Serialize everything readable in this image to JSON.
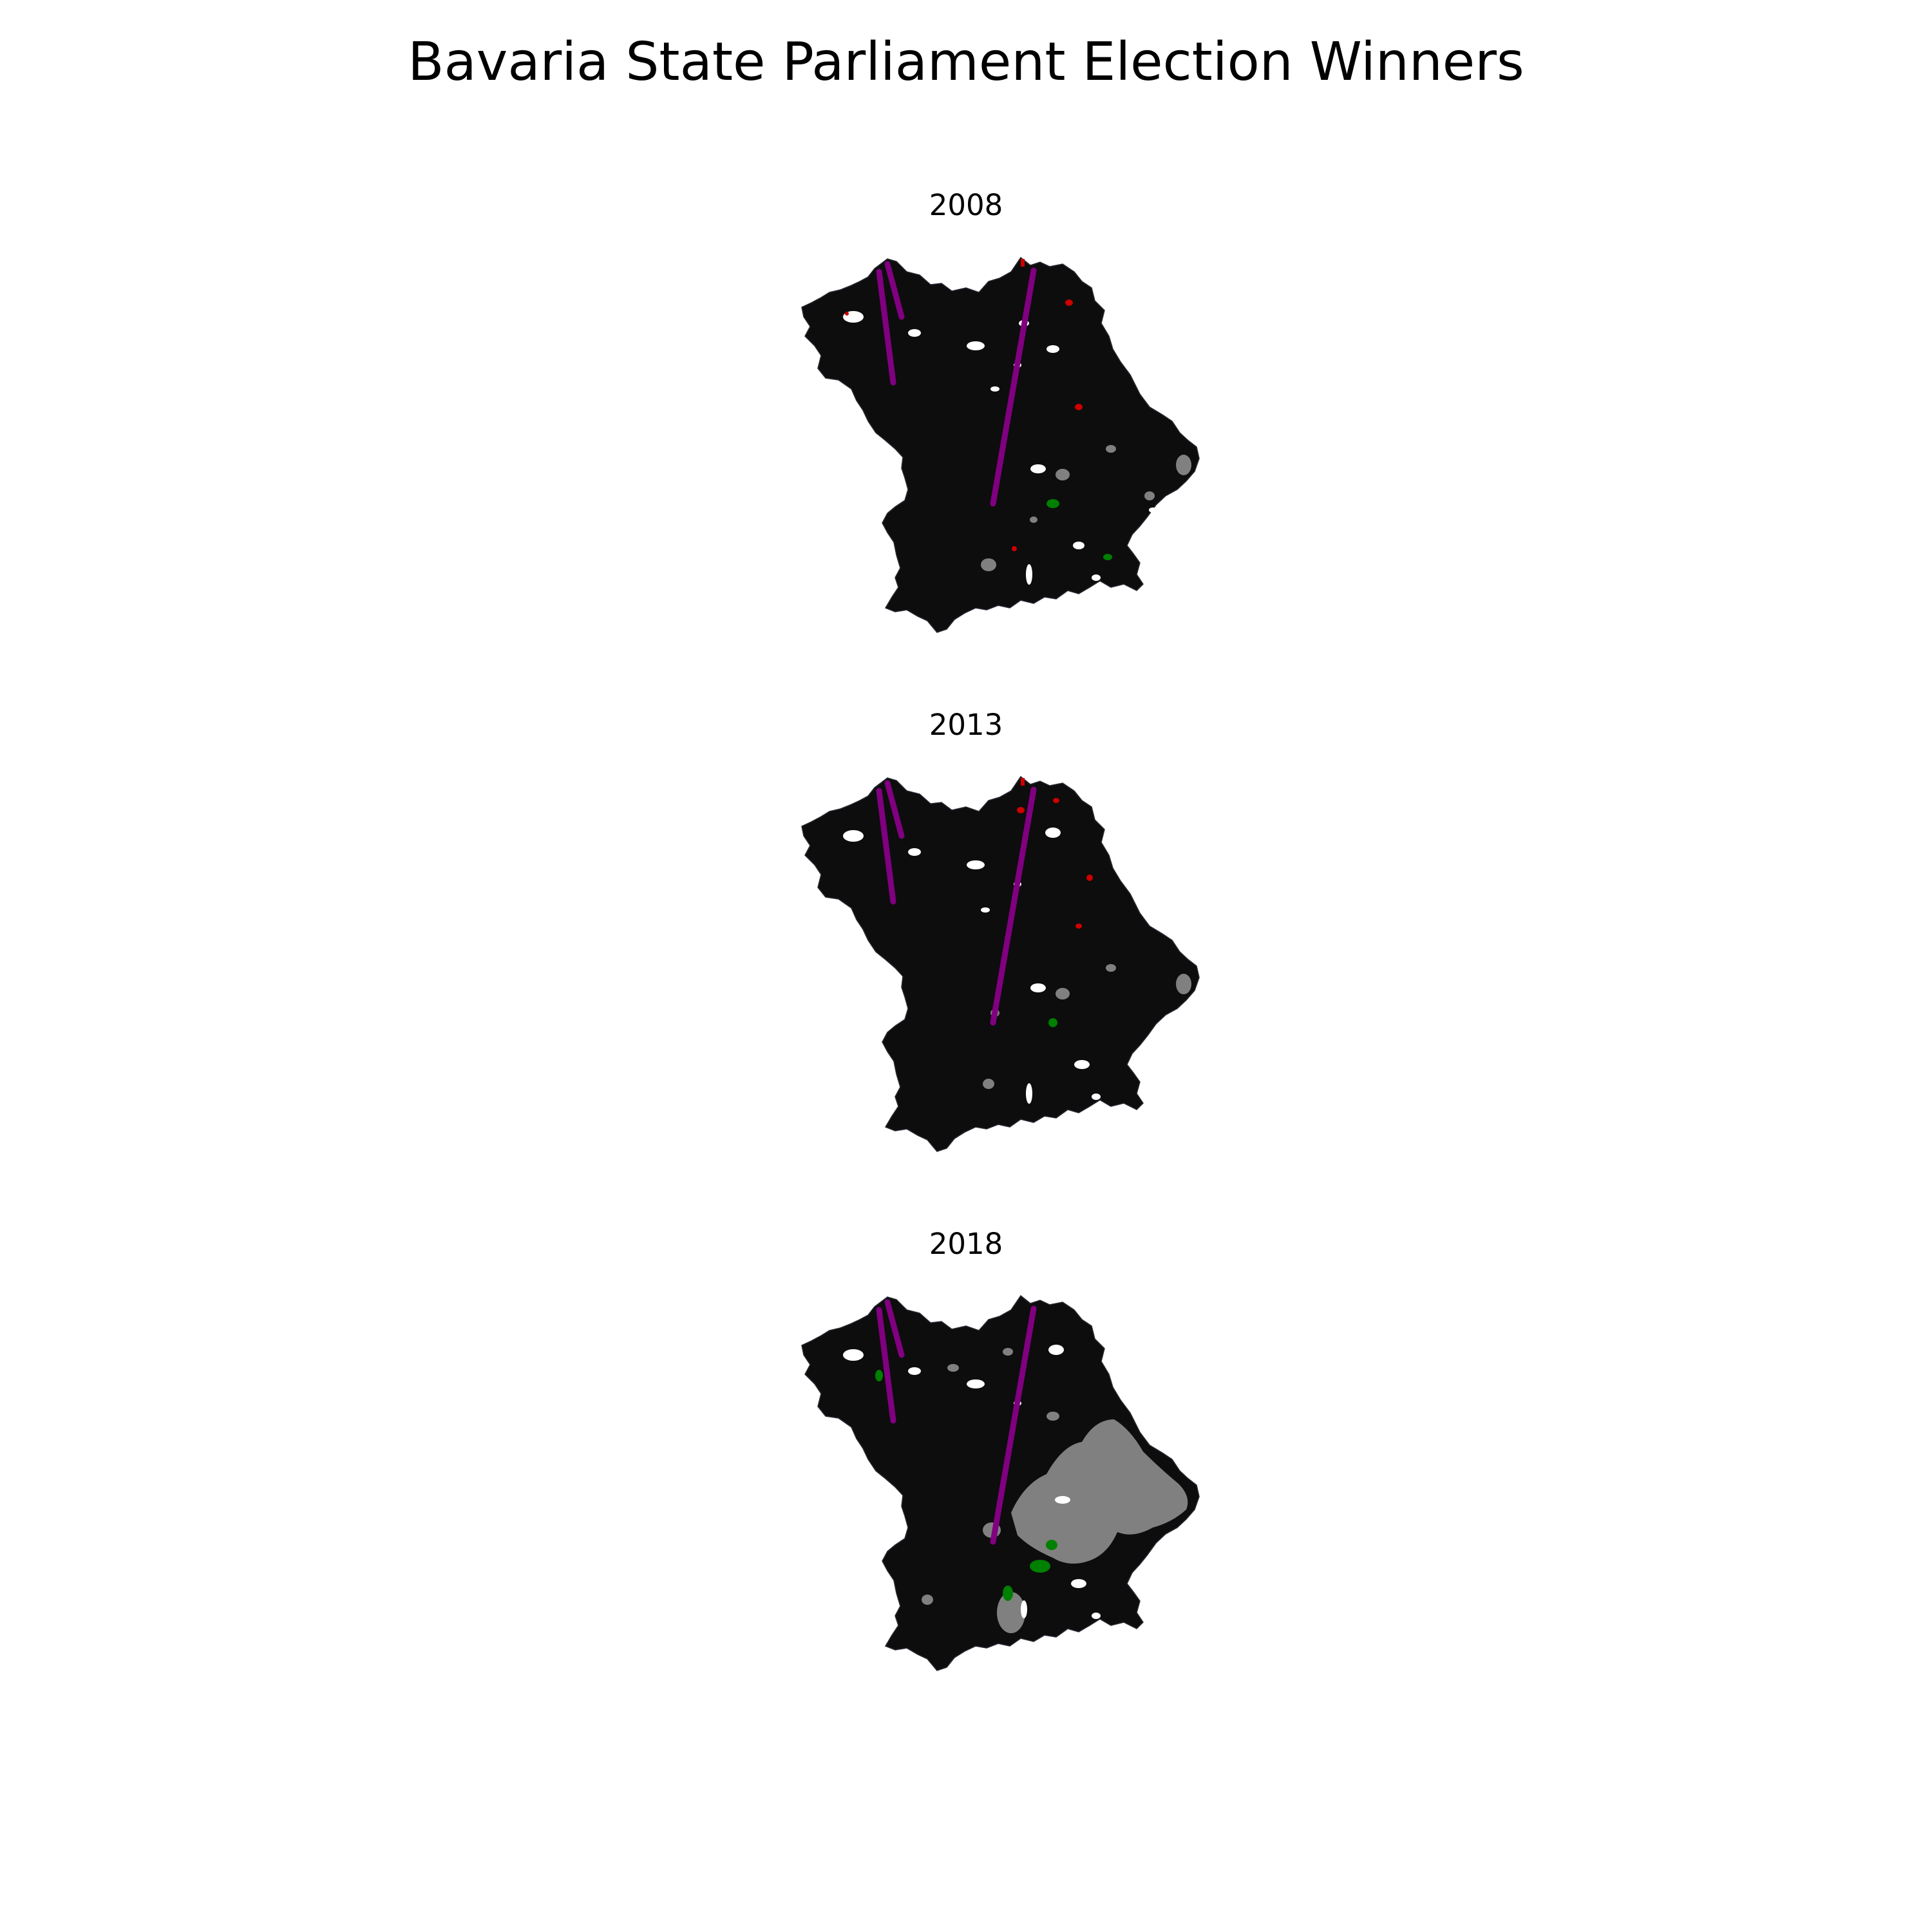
{
  "figure": {
    "title": "Bavaria State Parliament Election Winners"
  },
  "colors": {
    "background": "#ffffff",
    "land_dominant": "#0d0d0d",
    "district_edge": "#262a33",
    "grey_party": "#808080",
    "green_party": "#008000",
    "red_party": "#cc0000",
    "purple_line": "#800080",
    "no_data": "#ffffff"
  },
  "panels": [
    {
      "year": "2008"
    },
    {
      "year": "2013"
    },
    {
      "year": "2018"
    }
  ]
}
